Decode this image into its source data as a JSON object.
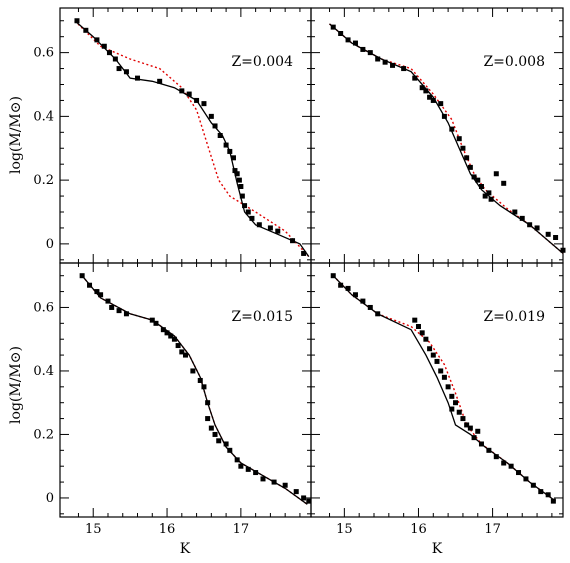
{
  "chart_data": {
    "type": "scatter",
    "xlabel": "K",
    "ylabel": "log(M/M⊙)",
    "xlim": [
      14.55,
      17.95
    ],
    "ylim": [
      -0.06,
      0.74
    ],
    "x_ticks": [
      15,
      16,
      17
    ],
    "y_ticks": [
      0,
      0.2,
      0.4,
      0.6
    ],
    "x_tick_labels": [
      "15",
      "16",
      "17"
    ],
    "y_tick_labels": [
      "0",
      "0.2",
      "0.4",
      "0.6"
    ],
    "grid": false,
    "colors": {
      "solid": "#000000",
      "dotted": "#e00000",
      "points": "#000000"
    },
    "panels": [
      {
        "label": "Z=0.004",
        "points": [
          [
            14.78,
            0.7
          ],
          [
            14.9,
            0.67
          ],
          [
            15.05,
            0.64
          ],
          [
            15.15,
            0.62
          ],
          [
            15.22,
            0.6
          ],
          [
            15.3,
            0.58
          ],
          [
            15.35,
            0.55
          ],
          [
            15.45,
            0.54
          ],
          [
            15.6,
            0.52
          ],
          [
            15.9,
            0.51
          ],
          [
            16.2,
            0.48
          ],
          [
            16.3,
            0.47
          ],
          [
            16.4,
            0.45
          ],
          [
            16.5,
            0.44
          ],
          [
            16.6,
            0.4
          ],
          [
            16.65,
            0.37
          ],
          [
            16.72,
            0.34
          ],
          [
            16.8,
            0.31
          ],
          [
            16.85,
            0.29
          ],
          [
            16.9,
            0.27
          ],
          [
            16.92,
            0.23
          ],
          [
            16.95,
            0.22
          ],
          [
            16.98,
            0.2
          ],
          [
            17.0,
            0.18
          ],
          [
            17.02,
            0.15
          ],
          [
            17.05,
            0.12
          ],
          [
            17.1,
            0.1
          ],
          [
            17.15,
            0.08
          ],
          [
            17.25,
            0.06
          ],
          [
            17.4,
            0.05
          ],
          [
            17.5,
            0.04
          ],
          [
            17.7,
            0.01
          ],
          [
            17.85,
            -0.03
          ]
        ],
        "solid": [
          [
            14.75,
            0.7
          ],
          [
            15.0,
            0.65
          ],
          [
            15.3,
            0.58
          ],
          [
            15.5,
            0.52
          ],
          [
            15.8,
            0.51
          ],
          [
            16.1,
            0.49
          ],
          [
            16.4,
            0.45
          ],
          [
            16.6,
            0.38
          ],
          [
            16.75,
            0.34
          ],
          [
            16.85,
            0.29
          ],
          [
            16.95,
            0.19
          ],
          [
            17.05,
            0.1
          ],
          [
            17.2,
            0.06
          ],
          [
            17.5,
            0.03
          ],
          [
            17.8,
            0.0
          ],
          [
            17.92,
            -0.04
          ]
        ],
        "dotted": [
          [
            14.75,
            0.7
          ],
          [
            15.1,
            0.62
          ],
          [
            15.5,
            0.58
          ],
          [
            15.9,
            0.55
          ],
          [
            16.2,
            0.49
          ],
          [
            16.4,
            0.42
          ],
          [
            16.55,
            0.31
          ],
          [
            16.7,
            0.2
          ],
          [
            16.85,
            0.15
          ],
          [
            17.2,
            0.1
          ],
          [
            17.6,
            0.04
          ],
          [
            17.92,
            -0.04
          ]
        ]
      },
      {
        "label": "Z=0.008",
        "points": [
          [
            14.85,
            0.68
          ],
          [
            14.95,
            0.66
          ],
          [
            15.05,
            0.64
          ],
          [
            15.15,
            0.63
          ],
          [
            15.25,
            0.61
          ],
          [
            15.35,
            0.6
          ],
          [
            15.45,
            0.58
          ],
          [
            15.55,
            0.57
          ],
          [
            15.65,
            0.56
          ],
          [
            15.8,
            0.55
          ],
          [
            15.95,
            0.52
          ],
          [
            16.05,
            0.49
          ],
          [
            16.1,
            0.48
          ],
          [
            16.15,
            0.46
          ],
          [
            16.2,
            0.45
          ],
          [
            16.3,
            0.44
          ],
          [
            16.35,
            0.4
          ],
          [
            16.45,
            0.36
          ],
          [
            16.55,
            0.33
          ],
          [
            16.6,
            0.3
          ],
          [
            16.65,
            0.27
          ],
          [
            16.7,
            0.24
          ],
          [
            16.75,
            0.21
          ],
          [
            16.8,
            0.2
          ],
          [
            16.85,
            0.18
          ],
          [
            16.9,
            0.15
          ],
          [
            16.95,
            0.16
          ],
          [
            16.98,
            0.14
          ],
          [
            17.05,
            0.22
          ],
          [
            17.15,
            0.19
          ],
          [
            17.3,
            0.1
          ],
          [
            17.4,
            0.08
          ],
          [
            17.5,
            0.06
          ],
          [
            17.6,
            0.05
          ],
          [
            17.75,
            0.03
          ],
          [
            17.85,
            0.02
          ],
          [
            17.95,
            -0.02
          ]
        ],
        "solid": [
          [
            14.8,
            0.69
          ],
          [
            15.1,
            0.63
          ],
          [
            15.5,
            0.58
          ],
          [
            15.9,
            0.54
          ],
          [
            16.2,
            0.46
          ],
          [
            16.4,
            0.38
          ],
          [
            16.55,
            0.3
          ],
          [
            16.7,
            0.22
          ],
          [
            16.85,
            0.17
          ],
          [
            17.1,
            0.12
          ],
          [
            17.5,
            0.06
          ],
          [
            17.95,
            -0.03
          ]
        ],
        "dotted": [
          [
            14.8,
            0.69
          ],
          [
            15.1,
            0.63
          ],
          [
            15.5,
            0.58
          ],
          [
            15.9,
            0.55
          ],
          [
            16.2,
            0.47
          ],
          [
            16.45,
            0.39
          ],
          [
            16.6,
            0.3
          ],
          [
            16.75,
            0.22
          ],
          [
            16.9,
            0.17
          ],
          [
            17.2,
            0.11
          ],
          [
            17.5,
            0.06
          ],
          [
            17.95,
            -0.03
          ]
        ]
      },
      {
        "label": "Z=0.015",
        "points": [
          [
            14.85,
            0.7
          ],
          [
            14.95,
            0.67
          ],
          [
            15.05,
            0.65
          ],
          [
            15.1,
            0.64
          ],
          [
            15.2,
            0.62
          ],
          [
            15.25,
            0.6
          ],
          [
            15.35,
            0.59
          ],
          [
            15.45,
            0.58
          ],
          [
            15.8,
            0.56
          ],
          [
            15.85,
            0.55
          ],
          [
            15.95,
            0.53
          ],
          [
            16.0,
            0.52
          ],
          [
            16.05,
            0.51
          ],
          [
            16.1,
            0.5
          ],
          [
            16.15,
            0.48
          ],
          [
            16.2,
            0.46
          ],
          [
            16.25,
            0.45
          ],
          [
            16.35,
            0.4
          ],
          [
            16.45,
            0.37
          ],
          [
            16.5,
            0.35
          ],
          [
            16.55,
            0.3
          ],
          [
            16.55,
            0.25
          ],
          [
            16.6,
            0.22
          ],
          [
            16.65,
            0.2
          ],
          [
            16.7,
            0.18
          ],
          [
            16.8,
            0.17
          ],
          [
            16.85,
            0.15
          ],
          [
            16.95,
            0.12
          ],
          [
            17.0,
            0.1
          ],
          [
            17.1,
            0.09
          ],
          [
            17.2,
            0.08
          ],
          [
            17.3,
            0.06
          ],
          [
            17.45,
            0.05
          ],
          [
            17.6,
            0.04
          ],
          [
            17.75,
            0.02
          ],
          [
            17.85,
            0.0
          ],
          [
            17.92,
            -0.01
          ]
        ],
        "solid": [
          [
            14.85,
            0.7
          ],
          [
            15.1,
            0.63
          ],
          [
            15.5,
            0.58
          ],
          [
            15.8,
            0.56
          ],
          [
            16.1,
            0.51
          ],
          [
            16.3,
            0.45
          ],
          [
            16.45,
            0.38
          ],
          [
            16.55,
            0.3
          ],
          [
            16.65,
            0.23
          ],
          [
            16.8,
            0.16
          ],
          [
            17.0,
            0.11
          ],
          [
            17.3,
            0.07
          ],
          [
            17.6,
            0.03
          ],
          [
            17.9,
            -0.02
          ]
        ],
        "dotted": [
          [
            14.85,
            0.7
          ],
          [
            15.1,
            0.63
          ],
          [
            15.5,
            0.58
          ],
          [
            15.8,
            0.56
          ],
          [
            16.1,
            0.51
          ],
          [
            16.3,
            0.45
          ],
          [
            16.45,
            0.38
          ],
          [
            16.55,
            0.3
          ],
          [
            16.65,
            0.23
          ],
          [
            16.8,
            0.16
          ],
          [
            17.0,
            0.11
          ],
          [
            17.3,
            0.07
          ],
          [
            17.6,
            0.03
          ],
          [
            17.9,
            -0.02
          ]
        ]
      },
      {
        "label": "Z=0.019",
        "points": [
          [
            14.85,
            0.7
          ],
          [
            14.95,
            0.67
          ],
          [
            15.05,
            0.66
          ],
          [
            15.15,
            0.64
          ],
          [
            15.25,
            0.62
          ],
          [
            15.35,
            0.6
          ],
          [
            15.45,
            0.58
          ],
          [
            15.95,
            0.56
          ],
          [
            16.0,
            0.54
          ],
          [
            16.05,
            0.52
          ],
          [
            16.1,
            0.5
          ],
          [
            16.15,
            0.47
          ],
          [
            16.2,
            0.45
          ],
          [
            16.25,
            0.43
          ],
          [
            16.3,
            0.4
          ],
          [
            16.35,
            0.38
          ],
          [
            16.4,
            0.35
          ],
          [
            16.45,
            0.32
          ],
          [
            16.5,
            0.3
          ],
          [
            16.45,
            0.28
          ],
          [
            16.55,
            0.27
          ],
          [
            16.6,
            0.25
          ],
          [
            16.65,
            0.23
          ],
          [
            16.7,
            0.22
          ],
          [
            16.8,
            0.21
          ],
          [
            16.75,
            0.19
          ],
          [
            16.85,
            0.17
          ],
          [
            16.95,
            0.15
          ],
          [
            17.05,
            0.13
          ],
          [
            17.15,
            0.11
          ],
          [
            17.25,
            0.1
          ],
          [
            17.35,
            0.08
          ],
          [
            17.45,
            0.06
          ],
          [
            17.55,
            0.04
          ],
          [
            17.65,
            0.02
          ],
          [
            17.75,
            0.01
          ],
          [
            17.82,
            -0.01
          ]
        ],
        "solid": [
          [
            14.85,
            0.7
          ],
          [
            15.1,
            0.64
          ],
          [
            15.45,
            0.58
          ],
          [
            15.9,
            0.53
          ],
          [
            16.1,
            0.45
          ],
          [
            16.25,
            0.38
          ],
          [
            16.4,
            0.3
          ],
          [
            16.5,
            0.23
          ],
          [
            16.7,
            0.2
          ],
          [
            16.9,
            0.16
          ],
          [
            17.2,
            0.11
          ],
          [
            17.5,
            0.05
          ],
          [
            17.85,
            -0.01
          ]
        ],
        "dotted": [
          [
            14.85,
            0.7
          ],
          [
            15.1,
            0.64
          ],
          [
            15.45,
            0.58
          ],
          [
            15.9,
            0.54
          ],
          [
            16.15,
            0.49
          ],
          [
            16.35,
            0.42
          ],
          [
            16.5,
            0.33
          ],
          [
            16.65,
            0.23
          ],
          [
            16.85,
            0.17
          ],
          [
            17.2,
            0.11
          ],
          [
            17.5,
            0.05
          ],
          [
            17.85,
            -0.01
          ]
        ]
      }
    ]
  }
}
